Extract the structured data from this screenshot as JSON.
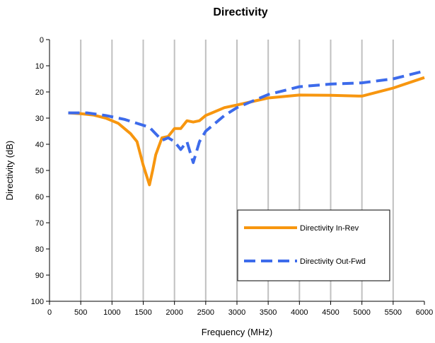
{
  "chart_data": {
    "type": "line",
    "title": "Directivity",
    "xlabel": "Frequency (MHz)",
    "ylabel": "Directivity (dB)",
    "xlim": [
      0,
      6000
    ],
    "ylim": [
      0,
      100
    ],
    "y_inverted": true,
    "x_ticks": [
      "0",
      "500",
      "1000",
      "1500",
      "2000",
      "2500",
      "3000",
      "3500",
      "4000",
      "4500",
      "5000",
      "5500",
      "6000"
    ],
    "y_ticks": [
      "0",
      "10",
      "20",
      "30",
      "40",
      "50",
      "60",
      "70",
      "80",
      "90",
      "100"
    ],
    "grid": "vertical",
    "legend_position": "lower-right",
    "series": [
      {
        "name": "Directivity In-Rev",
        "color": "#F7960F",
        "style": "solid",
        "points": [
          [
            300,
            28
          ],
          [
            500,
            28.3
          ],
          [
            700,
            28.8
          ],
          [
            900,
            30
          ],
          [
            1000,
            31
          ],
          [
            1100,
            32
          ],
          [
            1200,
            34
          ],
          [
            1300,
            36
          ],
          [
            1400,
            39
          ],
          [
            1500,
            48
          ],
          [
            1600,
            55.5
          ],
          [
            1650,
            50
          ],
          [
            1700,
            44
          ],
          [
            1800,
            37.5
          ],
          [
            1900,
            37
          ],
          [
            2000,
            34
          ],
          [
            2100,
            34
          ],
          [
            2200,
            31
          ],
          [
            2300,
            31.5
          ],
          [
            2400,
            31
          ],
          [
            2500,
            29
          ],
          [
            2600,
            28
          ],
          [
            2800,
            26
          ],
          [
            3000,
            25
          ],
          [
            3500,
            22.3
          ],
          [
            4000,
            21.2
          ],
          [
            4500,
            21.3
          ],
          [
            5000,
            21.6
          ],
          [
            5500,
            18.5
          ],
          [
            6000,
            14.5
          ]
        ]
      },
      {
        "name": "Directivity Out-Fwd",
        "color": "#3D6BEB",
        "style": "dashed",
        "points": [
          [
            300,
            28
          ],
          [
            600,
            28
          ],
          [
            900,
            29
          ],
          [
            1200,
            30.5
          ],
          [
            1400,
            32
          ],
          [
            1600,
            33.5
          ],
          [
            1700,
            36
          ],
          [
            1800,
            38.5
          ],
          [
            1900,
            37.5
          ],
          [
            2000,
            39
          ],
          [
            2100,
            42
          ],
          [
            2200,
            39
          ],
          [
            2300,
            47
          ],
          [
            2400,
            39
          ],
          [
            2500,
            35
          ],
          [
            2600,
            33
          ],
          [
            2700,
            31
          ],
          [
            2800,
            29
          ],
          [
            3000,
            26
          ],
          [
            3500,
            21
          ],
          [
            4000,
            18
          ],
          [
            4500,
            17
          ],
          [
            5000,
            16.5
          ],
          [
            5500,
            15
          ],
          [
            6000,
            12
          ]
        ]
      }
    ]
  }
}
